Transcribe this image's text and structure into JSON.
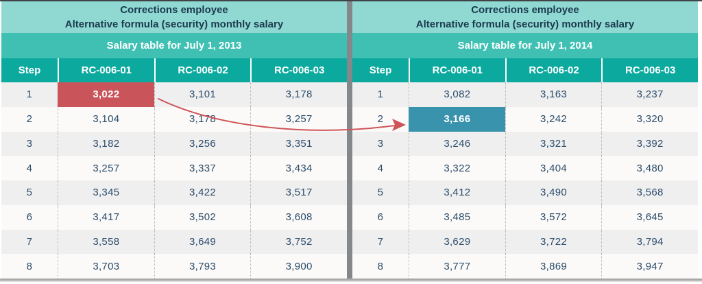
{
  "chart_data": [
    {
      "type": "table",
      "title": [
        "Corrections employee",
        "Alternative formula (security) monthly salary"
      ],
      "subtitle": "Salary table for July 1, 2013",
      "columns": [
        "Step",
        "RC-006-01",
        "RC-006-02",
        "RC-006-03"
      ],
      "rows": [
        [
          "1",
          "3,022",
          "3,101",
          "3,178"
        ],
        [
          "2",
          "3,104",
          "3,178",
          "3,257"
        ],
        [
          "3",
          "3,182",
          "3,256",
          "3,351"
        ],
        [
          "4",
          "3,257",
          "3,337",
          "3,434"
        ],
        [
          "5",
          "3,345",
          "3,422",
          "3,517"
        ],
        [
          "6",
          "3,417",
          "3,502",
          "3,608"
        ],
        [
          "7",
          "3,558",
          "3,649",
          "3,752"
        ],
        [
          "8",
          "3,703",
          "3,793",
          "3,900"
        ]
      ],
      "highlight": {
        "row": 0,
        "col": 1,
        "color": "#c9545a"
      }
    },
    {
      "type": "table",
      "title": [
        "Corrections employee",
        "Alternative formula (security) monthly salary"
      ],
      "subtitle": "Salary table for July 1, 2014",
      "columns": [
        "Step",
        "RC-006-01",
        "RC-006-02",
        "RC-006-03"
      ],
      "rows": [
        [
          "1",
          "3,082",
          "3,163",
          "3,237"
        ],
        [
          "2",
          "3,166",
          "3,242",
          "3,320"
        ],
        [
          "3",
          "3,246",
          "3,321",
          "3,392"
        ],
        [
          "4",
          "3,322",
          "3,404",
          "3,480"
        ],
        [
          "5",
          "3,412",
          "3,490",
          "3,568"
        ],
        [
          "6",
          "3,485",
          "3,572",
          "3,645"
        ],
        [
          "7",
          "3,629",
          "3,722",
          "3,794"
        ],
        [
          "8",
          "3,777",
          "3,869",
          "3,947"
        ]
      ],
      "highlight": {
        "row": 1,
        "col": 1,
        "color": "#3993ac"
      }
    }
  ],
  "annotation_arrow": {
    "color": "#cf5459",
    "from": {
      "table": 0,
      "row": 0,
      "col": 1
    },
    "to": {
      "table": 1,
      "row": 1,
      "col": 1
    }
  },
  "colors": {
    "title_bg": "#8fd9d2",
    "subtitle_bg": "#3fc0b3",
    "colheader_bg": "#0ca99e",
    "title_text": "#1c3a50",
    "body_text": "#2b4c6b",
    "row_odd": "#efeff0",
    "row_even": "#fbfaf8",
    "divider": "#84888b",
    "highlight_red": "#c9545a",
    "highlight_teal": "#3993ac"
  }
}
